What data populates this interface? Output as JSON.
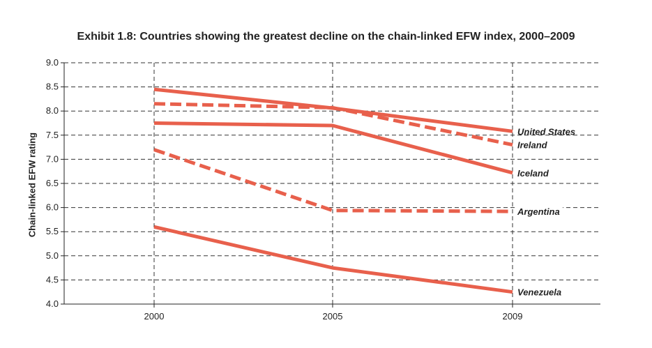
{
  "chart_data": {
    "type": "line",
    "title": "Exhibit 1.8: Countries showing the greatest decline on the chain-linked EFW index, 2000–2009",
    "xlabel": "",
    "ylabel": "Chain-linked EFW rating",
    "categories": [
      "2000",
      "2005",
      "2009"
    ],
    "ylim": [
      4.0,
      9.0
    ],
    "yticks": [
      "4.0",
      "4.5",
      "5.0",
      "5.5",
      "6.0",
      "6.5",
      "7.0",
      "7.5",
      "8.0",
      "8.5",
      "9.0"
    ],
    "grid": true,
    "color": "#e8604c",
    "series": [
      {
        "name": "United States",
        "values": [
          8.45,
          8.06,
          7.58
        ],
        "style": "solid"
      },
      {
        "name": "Ireland",
        "values": [
          8.15,
          8.07,
          7.3
        ],
        "style": "dashed"
      },
      {
        "name": "Iceland",
        "values": [
          7.75,
          7.7,
          6.72
        ],
        "style": "solid"
      },
      {
        "name": "Argentina",
        "values": [
          7.2,
          5.94,
          5.92
        ],
        "style": "dashed"
      },
      {
        "name": "Venezuela",
        "values": [
          5.6,
          4.75,
          4.25
        ],
        "style": "solid"
      }
    ]
  }
}
